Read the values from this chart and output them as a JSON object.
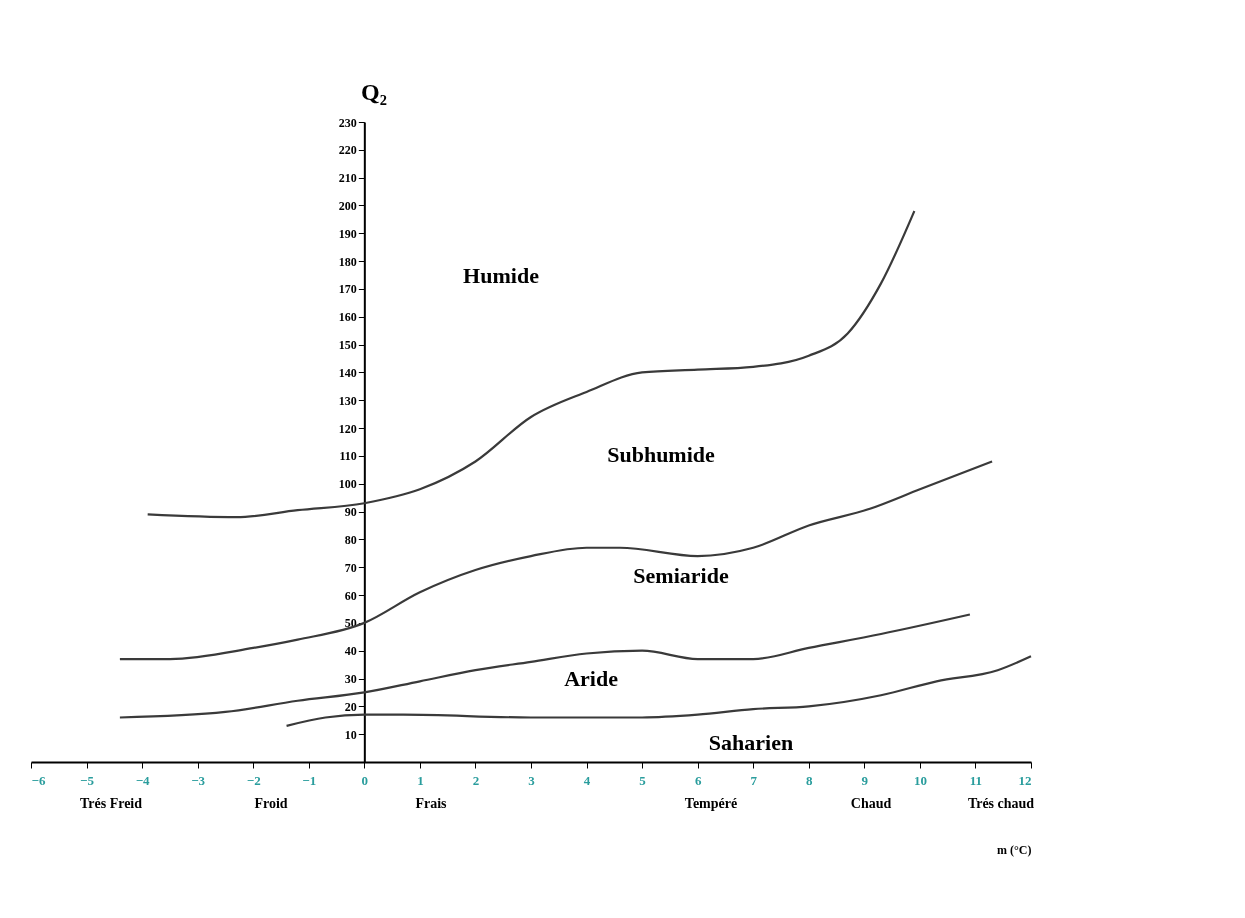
{
  "chart_data": {
    "type": "line",
    "ylabel": "Q₂",
    "xlabel": "m (°C)",
    "xlim": [
      -6,
      12
    ],
    "xticks": [
      -6,
      -5,
      -4,
      -3,
      -2,
      -1,
      0,
      1,
      2,
      3,
      4,
      5,
      6,
      7,
      8,
      9,
      10,
      11,
      12
    ],
    "ylim": [
      0,
      230
    ],
    "yticks": [
      10,
      20,
      30,
      40,
      50,
      60,
      70,
      80,
      90,
      100,
      110,
      120,
      130,
      140,
      150,
      160,
      170,
      180,
      190,
      200,
      210,
      220,
      230
    ],
    "grid": false,
    "legend": false,
    "marker": "none",
    "line_style": "solid",
    "series": [
      {
        "color": "#3a3a3a",
        "x": [
          -3.9,
          -2.3,
          -1.2,
          0,
          1,
          2,
          3,
          4,
          5,
          6,
          7,
          8,
          8.7,
          9.3,
          9.9
        ],
        "values": [
          89,
          88,
          90.5,
          93,
          98,
          108,
          124,
          133,
          140,
          141,
          142,
          146,
          154,
          172,
          198
        ]
      },
      {
        "color": "#3a3a3a",
        "x": [
          -4.4,
          -3.5,
          -2,
          -1.2,
          0,
          1,
          2,
          3,
          4,
          4.6,
          6,
          7,
          8,
          9.1,
          10,
          11.3
        ],
        "values": [
          37,
          37,
          41,
          44,
          50,
          61,
          69,
          74,
          77,
          77,
          74,
          77,
          85,
          91,
          98,
          108
        ]
      },
      {
        "color": "#3a3a3a",
        "x": [
          -4.4,
          -2.5,
          -1.2,
          0,
          1,
          2,
          3,
          4,
          5,
          6,
          7,
          8,
          9.3,
          10.9
        ],
        "values": [
          16,
          18,
          22,
          25,
          29,
          33,
          36,
          39,
          40,
          37,
          37,
          41,
          46,
          53
        ]
      },
      {
        "color": "#3a3a3a",
        "x": [
          -1.4,
          -0.7,
          0,
          0.7,
          3,
          5,
          6,
          7,
          8,
          9.3,
          10.3,
          11.4,
          12
        ],
        "values": [
          13,
          16,
          17,
          17,
          16,
          16,
          17,
          19,
          20,
          24,
          29,
          33,
          38
        ]
      }
    ],
    "annotations": [
      "Humide",
      "Subhumide",
      "Semiaride",
      "Aride",
      "Saharien",
      "Trés  Freid",
      "Froid",
      "Frais",
      "Tempéré",
      "Chaud",
      "Trés chaud"
    ]
  }
}
